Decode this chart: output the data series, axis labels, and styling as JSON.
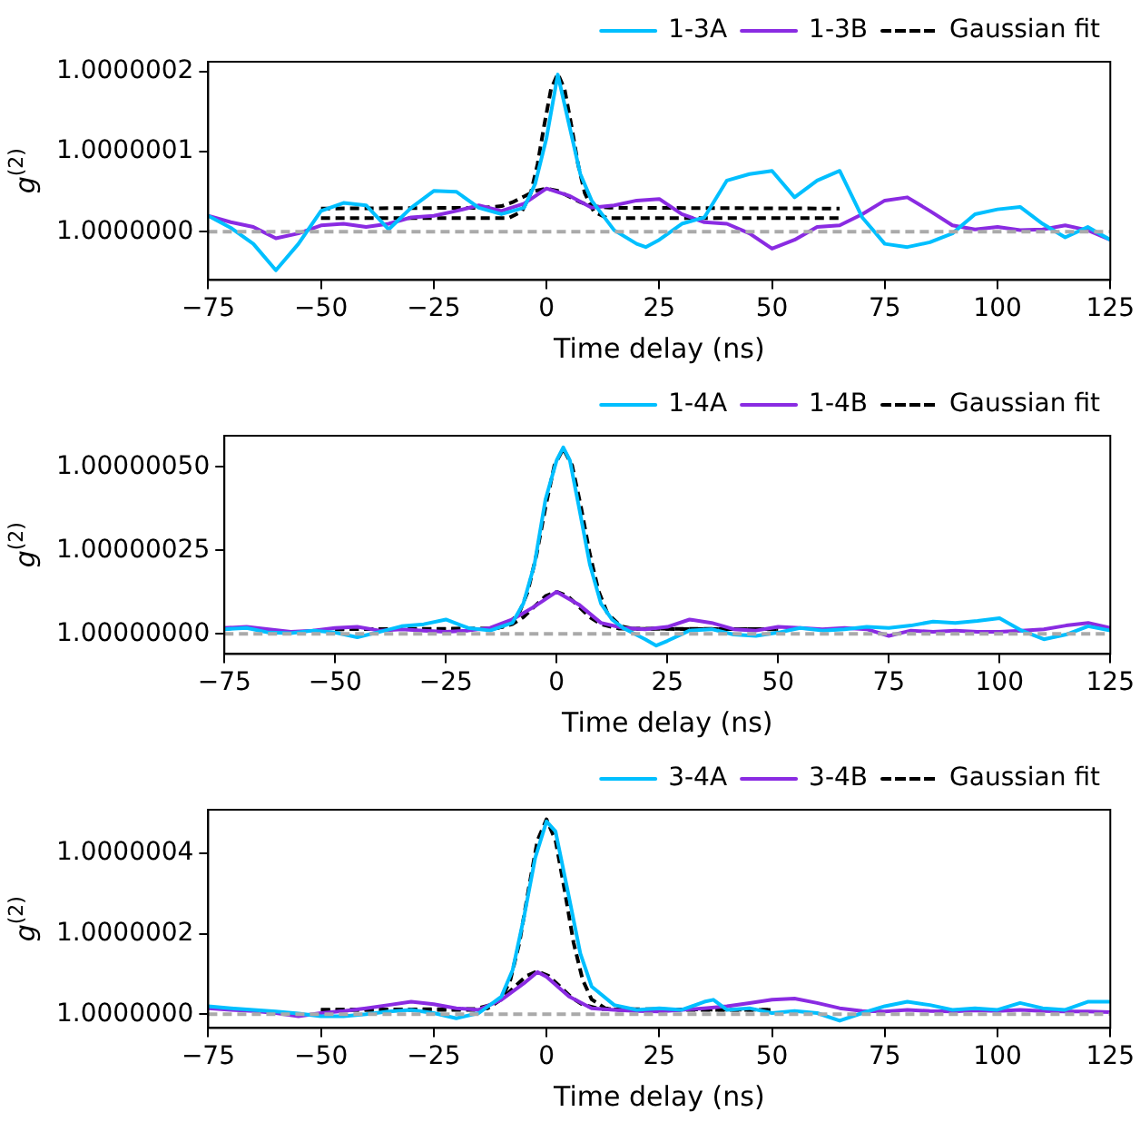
{
  "chart_data": [
    {
      "type": "line",
      "xlabel": "Time delay (ns)",
      "ylabel": "g$^{(2)}$",
      "legend": "top right",
      "xlim": [
        -75,
        125
      ],
      "xticks": [
        {
          "value": -75,
          "label": "−75"
        },
        {
          "value": -50,
          "label": "−50"
        },
        {
          "value": -25,
          "label": "−25"
        },
        0,
        25,
        50,
        75,
        100,
        125
      ],
      "ylim": [
        0.99999994,
        1.000000212
      ],
      "yticks": [
        {
          "value": 1,
          "label": "1.0000000"
        },
        1.0000001,
        1.0000002
      ],
      "ref_lines": [
        {
          "axis": "y",
          "value": 1,
          "color": "#aaaaaa",
          "line_style": "dashed"
        }
      ],
      "series": [
        {
          "name": "1-3A",
          "color": "#00bfff",
          "x": [
            -75,
            -70,
            -65,
            -60,
            -55,
            -50,
            -45,
            -40,
            -35,
            -30,
            -25,
            -20,
            -15,
            -10,
            -5,
            -2.5,
            0,
            2.5,
            5,
            7.5,
            10,
            15,
            20,
            22,
            25,
            30,
            35,
            40,
            45,
            50,
            55,
            60,
            65,
            70,
            75,
            80,
            85,
            90,
            95,
            100,
            105,
            110,
            115,
            120,
            125
          ],
          "values": [
            1.00000002,
            1.000000005,
            0.999999985,
            0.999999952,
            0.999999985,
            1.000000026,
            1.000000036,
            1.000000033,
            1.000000003,
            1.00000003,
            1.000000051,
            1.00000005,
            1.00000003,
            1.000000022,
            1.00000003,
            1.00000006,
            1.000000117,
            1.000000196,
            1.000000134,
            1.000000072,
            1.000000039,
            1.000000002,
            0.999999985,
            0.999999981,
            0.99999999,
            1.00000001,
            1.000000018,
            1.000000064,
            1.000000072,
            1.000000076,
            1.000000043,
            1.000000064,
            1.000000076,
            1.000000018,
            0.999999985,
            0.999999981,
            0.999999987,
            0.999999998,
            1.000000022,
            1.000000028,
            1.000000031,
            1.00000001,
            0.999999993,
            1.000000006,
            0.99999999
          ]
        },
        {
          "name": "1-3B",
          "color": "#8a2be2",
          "x": [
            -75,
            -70,
            -65,
            -60,
            -55,
            -50,
            -45,
            -40,
            -35,
            -30,
            -25,
            -20,
            -15,
            -10,
            -5,
            0,
            5,
            10,
            15,
            20,
            25,
            30,
            35,
            40,
            45,
            50,
            55,
            60,
            65,
            70,
            75,
            80,
            85,
            90,
            95,
            100,
            105,
            110,
            115,
            120,
            125
          ],
          "values": [
            1.00000002,
            1.000000012,
            1.000000006,
            0.999999992,
            0.999999998,
            1.000000008,
            1.00000001,
            1.000000006,
            1.00000001,
            1.000000018,
            1.00000002,
            1.000000026,
            1.000000033,
            1.000000026,
            1.000000035,
            1.000000054,
            1.000000045,
            1.00000003,
            1.000000033,
            1.000000039,
            1.000000041,
            1.000000022,
            1.000000012,
            1.00000001,
            0.999999998,
            0.999999979,
            0.99999999,
            1.000000006,
            1.000000008,
            1.000000022,
            1.000000039,
            1.000000043,
            1.000000026,
            1.000000008,
            1.000000003,
            1.000000006,
            1.000000002,
            1.000000003,
            1.000000008,
            1.000000002,
            0.99999999
          ]
        },
        {
          "name": "Gaussian fit",
          "color": "#000000",
          "line_style": "dashed",
          "x": [
            -50,
            -8.5,
            -5.5,
            -3.5,
            -2,
            -0.5,
            1,
            2.5,
            4,
            5.5,
            7,
            8.5,
            10.5,
            13.5,
            65
          ],
          "values": [
            1.000000017,
            1.000000017,
            1.000000025,
            1.000000048,
            1.000000084,
            1.000000133,
            1.000000178,
            1.000000197,
            1.000000178,
            1.000000133,
            1.000000084,
            1.000000048,
            1.000000025,
            1.000000017,
            1.000000017
          ]
        },
        {
          "color": "#000000",
          "line_style": "dashed",
          "x": [
            -50,
            -14,
            -10,
            -7.5,
            -5,
            -2.5,
            0,
            2.5,
            5,
            7.5,
            10,
            14,
            65
          ],
          "values": [
            1.000000029,
            1.00000003,
            1.000000032,
            1.000000037,
            1.000000044,
            1.000000051,
            1.000000054,
            1.000000051,
            1.000000044,
            1.000000037,
            1.000000032,
            1.00000003,
            1.000000029
          ]
        }
      ]
    },
    {
      "type": "line",
      "xlabel": "Time delay (ns)",
      "ylabel": "g$^{(2)}$",
      "legend": "top right",
      "xlim": [
        -75,
        125
      ],
      "xticks": [
        {
          "value": -75,
          "label": "−75"
        },
        {
          "value": -50,
          "label": "−50"
        },
        {
          "value": -25,
          "label": "−25"
        },
        0,
        25,
        50,
        75,
        100,
        125
      ],
      "ylim": [
        0.99999994,
        1.000000593
      ],
      "yticks": [
        {
          "value": 1,
          "label": "1.00000000"
        },
        {
          "value": 1.00000025,
          "label": "1.00000025"
        },
        {
          "value": 1.0000005,
          "label": "1.00000050"
        }
      ],
      "ref_lines": [
        {
          "axis": "y",
          "value": 1,
          "color": "#aaaaaa",
          "line_style": "dashed"
        }
      ],
      "series": [
        {
          "name": "1-4A",
          "color": "#00bfff",
          "x": [
            -75,
            -70,
            -65,
            -60,
            -55,
            -50,
            -45,
            -40,
            -35,
            -30,
            -25,
            -20,
            -15,
            -10,
            -7.5,
            -5,
            -2.5,
            0,
            1.5,
            3,
            5,
            7.5,
            10,
            12.5,
            15,
            20,
            22.5,
            25,
            30,
            35,
            40,
            45,
            50,
            55,
            60,
            65,
            70,
            75,
            80,
            85,
            90,
            95,
            100,
            105,
            110,
            115,
            120,
            125
          ],
          "values": [
            1.000000014,
            1.000000018,
            1.000000004,
            1.000000002,
            1.00000001,
            1.000000004,
            0.99999999,
            1.000000006,
            1.000000023,
            1.000000029,
            1.000000043,
            1.000000018,
            1.00000001,
            1.000000033,
            1.000000091,
            1.000000208,
            1.000000403,
            1.000000519,
            1.000000558,
            1.000000519,
            1.000000383,
            1.000000208,
            1.000000091,
            1.000000043,
            1.000000018,
            0.999999984,
            0.999999965,
            0.999999979,
            1.00000001,
            1.000000014,
            0.999999998,
            0.999999994,
            1.000000004,
            1.000000018,
            1.00000001,
            1.000000014,
            1.000000021,
            1.000000018,
            1.000000025,
            1.000000037,
            1.000000033,
            1.000000039,
            1.000000047,
            1.00000001,
            0.999999984,
            0.999999998,
            1.000000023,
            1.00000001
          ]
        },
        {
          "name": "1-4B",
          "color": "#8a2be2",
          "x": [
            -75,
            -70,
            -65,
            -60,
            -55,
            -50,
            -45,
            -40,
            -35,
            -30,
            -25,
            -20,
            -15,
            -10,
            -5,
            0,
            5,
            10,
            15,
            20,
            25,
            30,
            35,
            40,
            45,
            50,
            55,
            60,
            65,
            70,
            75,
            80,
            85,
            90,
            95,
            100,
            105,
            110,
            115,
            120,
            125
          ],
          "values": [
            1.000000018,
            1.000000021,
            1.000000014,
            1.000000006,
            1.00000001,
            1.000000018,
            1.000000021,
            1.00000001,
            1.000000014,
            1.00000001,
            1.000000006,
            1.00000001,
            1.000000018,
            1.000000043,
            1.000000082,
            1.000000126,
            1.000000088,
            1.000000033,
            1.000000018,
            1.000000014,
            1.000000021,
            1.000000043,
            1.000000033,
            1.000000014,
            1.00000001,
            1.000000021,
            1.000000018,
            1.000000014,
            1.000000018,
            1.000000014,
            0.999999994,
            1.00000001,
            1.000000006,
            1.00000001,
            1.000000006,
            1.000000006,
            1.00000001,
            1.000000014,
            1.000000025,
            1.000000033,
            1.000000018
          ]
        },
        {
          "name": "Gaussian fit",
          "color": "#000000",
          "line_style": "dashed",
          "x": [
            -50,
            -14.5,
            -11.5,
            -8.5,
            -6.5,
            -4.5,
            -2.5,
            -0.5,
            1.5,
            3.5,
            5.5,
            7.5,
            9.5,
            11.5,
            14.5,
            17.5,
            50
          ],
          "values": [
            1.000000014,
            1.000000015,
            1.000000023,
            1.000000061,
            1.000000127,
            1.000000239,
            1.00000038,
            1.000000504,
            1.000000554,
            1.000000504,
            1.00000038,
            1.000000239,
            1.000000127,
            1.000000061,
            1.000000023,
            1.000000015,
            1.000000014
          ]
        },
        {
          "color": "#000000",
          "line_style": "dashed",
          "x": [
            -50,
            -14,
            -10,
            -7.5,
            -5,
            -2.5,
            0,
            2.5,
            5,
            7.5,
            10,
            14,
            50
          ],
          "values": [
            1.000000014,
            1.000000016,
            1.000000029,
            1.00000005,
            1.000000082,
            1.000000113,
            1.000000126,
            1.000000113,
            1.000000082,
            1.00000005,
            1.000000029,
            1.000000016,
            1.000000014
          ]
        }
      ]
    },
    {
      "type": "line",
      "xlabel": "Time delay (ns)",
      "ylabel": "g$^{(2)}$",
      "legend": "top right",
      "xlim": [
        -75,
        125
      ],
      "xticks": [
        {
          "value": -75,
          "label": "−75"
        },
        {
          "value": -50,
          "label": "−50"
        },
        {
          "value": -25,
          "label": "−25"
        },
        0,
        25,
        50,
        75,
        100,
        125
      ],
      "ylim": [
        0.999999966,
        1.000000508
      ],
      "yticks": [
        {
          "value": 1,
          "label": "1.0000000"
        },
        1.0000002,
        1.0000004
      ],
      "ref_lines": [
        {
          "axis": "y",
          "value": 1,
          "color": "#aaaaaa",
          "line_style": "dashed"
        }
      ],
      "series": [
        {
          "name": "3-4A",
          "color": "#00bfff",
          "x": [
            -75,
            -70,
            -65,
            -60,
            -55,
            -50,
            -45,
            -40,
            -35,
            -30,
            -25,
            -20,
            -15,
            -10,
            -7.5,
            -5,
            -2.5,
            0,
            2,
            5,
            7.5,
            10,
            15,
            20,
            25,
            30,
            35,
            37,
            40,
            45,
            50,
            55,
            60,
            65,
            70,
            75,
            80,
            85,
            90,
            95,
            100,
            105,
            110,
            115,
            120,
            125
          ],
          "values": [
            1.00000002,
            1.000000015,
            1.000000011,
            1.000000007,
            1.000000002,
            0.999999995,
            0.999999995,
            1,
            1.000000007,
            1.000000011,
            1.000000003,
            0.99999999,
            1.000000003,
            1.000000044,
            1.00000011,
            1.000000241,
            1.000000389,
            1.000000479,
            1.000000454,
            1.00000029,
            1.000000151,
            1.000000069,
            1.000000023,
            1.000000011,
            1.000000015,
            1.000000011,
            1.000000031,
            1.000000036,
            1.000000011,
            1.000000015,
            1.000000003,
            1.000000008,
            1.000000003,
            0.999999984,
            1.000000003,
            1.00000002,
            1.000000031,
            1.000000023,
            1.000000011,
            1.000000015,
            1.000000011,
            1.000000028,
            1.000000015,
            1.000000011,
            1.000000031,
            1.000000031
          ]
        },
        {
          "name": "3-4B",
          "color": "#8a2be2",
          "x": [
            -75,
            -70,
            -65,
            -60,
            -55,
            -50,
            -45,
            -40,
            -35,
            -30,
            -25,
            -20,
            -15,
            -10,
            -5,
            -2,
            0,
            5,
            10,
            15,
            20,
            25,
            30,
            35,
            40,
            45,
            50,
            55,
            60,
            65,
            70,
            75,
            80,
            85,
            90,
            95,
            100,
            105,
            110,
            115,
            120,
            125
          ],
          "values": [
            1.000000015,
            1.000000011,
            1.000000008,
            1.000000003,
            0.999999995,
            1.000000003,
            1.000000008,
            1.000000015,
            1.000000023,
            1.000000031,
            1.000000025,
            1.000000015,
            1.000000011,
            1.000000036,
            1.000000077,
            1.000000105,
            1.000000093,
            1.000000044,
            1.000000015,
            1.000000011,
            1.000000008,
            1.000000007,
            1.000000011,
            1.000000015,
            1.00000002,
            1.000000028,
            1.000000036,
            1.000000039,
            1.000000028,
            1.000000015,
            1.000000008,
            1.000000007,
            1.000000011,
            1.000000008,
            1.000000007,
            1.00000001,
            1.000000008,
            1.000000011,
            1.000000008,
            1.000000007,
            1.000000007,
            1.000000005
          ]
        },
        {
          "name": "Gaussian fit",
          "color": "#000000",
          "line_style": "dashed",
          "x": [
            -50,
            -16,
            -13,
            -10,
            -8,
            -6,
            -4,
            -2,
            0,
            2,
            4,
            6,
            8,
            10,
            13,
            16,
            50
          ],
          "values": [
            1.000000011,
            1.000000011,
            1.000000015,
            1.000000037,
            1.000000086,
            1.000000178,
            1.000000309,
            1.000000432,
            1.000000484,
            1.000000432,
            1.000000309,
            1.000000178,
            1.000000086,
            1.000000037,
            1.000000015,
            1.000000011,
            1.000000011
          ]
        },
        {
          "color": "#000000",
          "line_style": "dashed",
          "x": [
            -50,
            -16,
            -12,
            -9.5,
            -7,
            -4.5,
            -2,
            0.5,
            3,
            5.5,
            8,
            12,
            50
          ],
          "values": [
            1.000000011,
            1.000000013,
            1.000000024,
            1.000000042,
            1.000000069,
            1.000000095,
            1.000000107,
            1.000000095,
            1.000000069,
            1.000000042,
            1.000000024,
            1.000000013,
            1.000000011
          ]
        }
      ]
    }
  ]
}
